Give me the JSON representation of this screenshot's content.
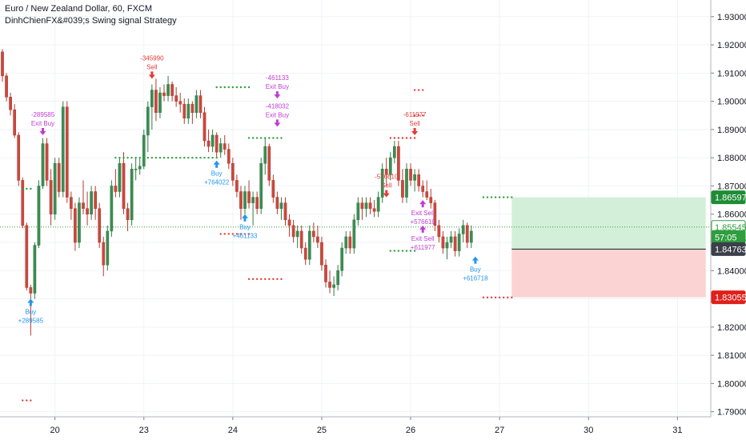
{
  "header": {
    "symbol_title": "Euro / New Zealand Dollar, 60, FXCM",
    "strategy_title": "DinhChienFX&#039;s Swing signal Strategy"
  },
  "colors": {
    "up": "#26a69a",
    "up_body": "#3d7a4a",
    "down": "#c4453b",
    "buy_signal": "#2196f3",
    "sell_signal": "#e53935",
    "exit_signal": "#c23bd4",
    "green_dots": "#2e9e3e",
    "red_dots": "#e53935",
    "tp_zone": "#d4efd9",
    "sl_zone": "#fbd3d3",
    "price_line": "#2e9e3e"
  },
  "chart_data": {
    "type": "candlestick",
    "x_ticks": [
      "20",
      "23",
      "24",
      "25",
      "26",
      "27",
      "30",
      "31"
    ],
    "y_ticks": [
      "1.93000",
      "1.92000",
      "1.91000",
      "1.90000",
      "1.89000",
      "1.88000",
      "1.87000",
      "1.86000",
      "1.85000",
      "1.84000",
      "1.83000",
      "1.82000",
      "1.81000",
      "1.80000",
      "1.79000"
    ],
    "ylim": [
      1.7882,
      1.9359
    ],
    "y_axis_side": "right",
    "candles": [
      [
        1.9175,
        1.9185,
        1.907,
        1.909
      ],
      [
        1.909,
        1.91,
        1.9,
        1.9015
      ],
      [
        1.9015,
        1.903,
        1.895,
        1.897
      ],
      [
        1.897,
        1.899,
        1.887,
        1.888
      ],
      [
        1.888,
        1.889,
        1.87,
        1.872
      ],
      [
        1.872,
        1.873,
        1.855,
        1.856
      ],
      [
        1.856,
        1.857,
        1.833,
        1.834
      ],
      [
        1.834,
        1.835,
        1.817,
        1.832
      ],
      [
        1.832,
        1.85,
        1.83,
        1.849
      ],
      [
        1.849,
        1.872,
        1.848,
        1.87
      ],
      [
        1.87,
        1.887,
        1.869,
        1.885
      ],
      [
        1.885,
        1.887,
        1.87,
        1.872
      ],
      [
        1.872,
        1.876,
        1.856,
        1.86
      ],
      [
        1.86,
        1.88,
        1.858,
        1.878
      ],
      [
        1.878,
        1.88,
        1.866,
        1.868
      ],
      [
        1.868,
        1.9,
        1.866,
        1.898
      ],
      [
        1.898,
        1.9,
        1.864,
        1.866
      ],
      [
        1.866,
        1.868,
        1.858,
        1.862
      ],
      [
        1.862,
        1.864,
        1.847,
        1.85
      ],
      [
        1.85,
        1.866,
        1.848,
        1.864
      ],
      [
        1.864,
        1.872,
        1.86,
        1.862
      ],
      [
        1.862,
        1.868,
        1.856,
        1.86
      ],
      [
        1.86,
        1.87,
        1.858,
        1.868
      ],
      [
        1.868,
        1.87,
        1.858,
        1.862
      ],
      [
        1.862,
        1.864,
        1.848,
        1.85
      ],
      [
        1.85,
        1.852,
        1.838,
        1.842
      ],
      [
        1.842,
        1.856,
        1.84,
        1.854
      ],
      [
        1.854,
        1.872,
        1.852,
        1.87
      ],
      [
        1.87,
        1.876,
        1.866,
        1.868
      ],
      [
        1.868,
        1.88,
        1.866,
        1.878
      ],
      [
        1.878,
        1.882,
        1.86,
        1.862
      ],
      [
        1.862,
        1.864,
        1.854,
        1.858
      ],
      [
        1.858,
        1.878,
        1.856,
        1.876
      ],
      [
        1.876,
        1.88,
        1.872,
        1.876
      ],
      [
        1.876,
        1.88,
        1.874,
        1.877
      ],
      [
        1.877,
        1.89,
        1.876,
        1.888
      ],
      [
        1.888,
        1.9,
        1.882,
        1.898
      ],
      [
        1.898,
        1.906,
        1.89,
        1.904
      ],
      [
        1.904,
        1.908,
        1.893,
        1.896
      ],
      [
        1.896,
        1.905,
        1.894,
        1.903
      ],
      [
        1.903,
        1.906,
        1.9,
        1.902
      ],
      [
        1.902,
        1.909,
        1.9,
        1.906
      ],
      [
        1.906,
        1.907,
        1.9,
        1.902
      ],
      [
        1.902,
        1.905,
        1.898,
        1.9
      ],
      [
        1.9,
        1.903,
        1.896,
        1.899
      ],
      [
        1.899,
        1.901,
        1.892,
        1.894
      ],
      [
        1.894,
        1.901,
        1.892,
        1.899
      ],
      [
        1.899,
        1.9,
        1.892,
        1.896
      ],
      [
        1.896,
        1.904,
        1.894,
        1.902
      ],
      [
        1.902,
        1.904,
        1.894,
        1.896
      ],
      [
        1.896,
        1.898,
        1.884,
        1.886
      ],
      [
        1.886,
        1.89,
        1.882,
        1.884
      ],
      [
        1.884,
        1.89,
        1.882,
        1.888
      ],
      [
        1.888,
        1.889,
        1.88,
        1.882
      ],
      [
        1.882,
        1.887,
        1.88,
        1.885
      ],
      [
        1.885,
        1.888,
        1.881,
        1.883
      ],
      [
        1.883,
        1.885,
        1.876,
        1.878
      ],
      [
        1.878,
        1.88,
        1.87,
        1.872
      ],
      [
        1.872,
        1.874,
        1.866,
        1.868
      ],
      [
        1.868,
        1.87,
        1.858,
        1.862
      ],
      [
        1.862,
        1.87,
        1.86,
        1.868
      ],
      [
        1.868,
        1.872,
        1.862,
        1.864
      ],
      [
        1.864,
        1.868,
        1.856,
        1.866
      ],
      [
        1.866,
        1.868,
        1.86,
        1.862
      ],
      [
        1.862,
        1.88,
        1.86,
        1.878
      ],
      [
        1.878,
        1.887,
        1.874,
        1.884
      ],
      [
        1.884,
        1.885,
        1.87,
        1.872
      ],
      [
        1.872,
        1.874,
        1.864,
        1.866
      ],
      [
        1.866,
        1.868,
        1.86,
        1.862
      ],
      [
        1.862,
        1.866,
        1.858,
        1.864
      ],
      [
        1.864,
        1.866,
        1.856,
        1.858
      ],
      [
        1.858,
        1.86,
        1.852,
        1.856
      ],
      [
        1.856,
        1.858,
        1.85,
        1.852
      ],
      [
        1.852,
        1.856,
        1.848,
        1.854
      ],
      [
        1.854,
        1.856,
        1.846,
        1.848
      ],
      [
        1.848,
        1.85,
        1.842,
        1.844
      ],
      [
        1.844,
        1.856,
        1.842,
        1.854
      ],
      [
        1.854,
        1.857,
        1.85,
        1.852
      ],
      [
        1.852,
        1.856,
        1.848,
        1.85
      ],
      [
        1.85,
        1.852,
        1.84,
        1.842
      ],
      [
        1.842,
        1.844,
        1.834,
        1.836
      ],
      [
        1.836,
        1.84,
        1.832,
        1.834
      ],
      [
        1.834,
        1.838,
        1.831,
        1.835
      ],
      [
        1.835,
        1.842,
        1.833,
        1.84
      ],
      [
        1.84,
        1.85,
        1.838,
        1.848
      ],
      [
        1.848,
        1.854,
        1.846,
        1.852
      ],
      [
        1.852,
        1.854,
        1.846,
        1.848
      ],
      [
        1.848,
        1.86,
        1.846,
        1.858
      ],
      [
        1.858,
        1.866,
        1.856,
        1.864
      ],
      [
        1.864,
        1.866,
        1.858,
        1.862
      ],
      [
        1.862,
        1.866,
        1.859,
        1.864
      ],
      [
        1.864,
        1.866,
        1.86,
        1.862
      ],
      [
        1.862,
        1.865,
        1.859,
        1.861
      ],
      [
        1.861,
        1.868,
        1.859,
        1.866
      ],
      [
        1.866,
        1.878,
        1.864,
        1.876
      ],
      [
        1.876,
        1.88,
        1.87,
        1.874
      ],
      [
        1.874,
        1.882,
        1.872,
        1.88
      ],
      [
        1.88,
        1.886,
        1.878,
        1.884
      ],
      [
        1.884,
        1.886,
        1.87,
        1.872
      ],
      [
        1.872,
        1.876,
        1.864,
        1.866
      ],
      [
        1.866,
        1.878,
        1.864,
        1.876
      ],
      [
        1.876,
        1.878,
        1.87,
        1.872
      ],
      [
        1.872,
        1.876,
        1.868,
        1.874
      ],
      [
        1.874,
        1.876,
        1.868,
        1.87
      ],
      [
        1.87,
        1.872,
        1.866,
        1.868
      ],
      [
        1.868,
        1.872,
        1.865,
        1.866
      ],
      [
        1.866,
        1.869,
        1.862,
        1.864
      ],
      [
        1.864,
        1.865,
        1.854,
        1.856
      ],
      [
        1.856,
        1.858,
        1.85,
        1.852
      ],
      [
        1.852,
        1.854,
        1.846,
        1.848
      ],
      [
        1.848,
        1.852,
        1.844,
        1.85
      ],
      [
        1.85,
        1.854,
        1.848,
        1.852
      ],
      [
        1.852,
        1.854,
        1.845,
        1.847
      ],
      [
        1.847,
        1.855,
        1.845,
        1.853
      ],
      [
        1.853,
        1.858,
        1.85,
        1.856
      ],
      [
        1.856,
        1.857,
        1.848,
        1.85
      ],
      [
        1.85,
        1.856,
        1.848,
        1.854
      ]
    ],
    "signals": [
      {
        "bar": 7,
        "kind": "buy",
        "side": "below",
        "at": 1.83,
        "lines": [
          "Buy",
          "+289585"
        ]
      },
      {
        "bar": 10,
        "kind": "exit",
        "side": "above",
        "at": 1.888,
        "lines": [
          "-289585",
          "Exit Buy"
        ]
      },
      {
        "bar": 37,
        "kind": "sell",
        "side": "above",
        "at": 1.908,
        "lines": [
          "-345990",
          "Sell"
        ]
      },
      {
        "bar": 53,
        "kind": "buy",
        "side": "below",
        "at": 1.879,
        "lines": [
          "Buy",
          "+764022"
        ]
      },
      {
        "bar": 60,
        "kind": "buy",
        "side": "below",
        "at": 1.86,
        "lines": [
          "Buy",
          "+461133"
        ]
      },
      {
        "bar": 68,
        "kind": "exit",
        "side": "above",
        "at": 1.901,
        "lines": [
          "-461133",
          "Exit Buy"
        ]
      },
      {
        "bar": 68,
        "kind": "exit",
        "side": "above",
        "at": 1.891,
        "lines": [
          "-418032",
          "Exit Buy"
        ]
      },
      {
        "bar": 95,
        "kind": "sell",
        "side": "above",
        "at": 1.866,
        "lines": [
          "-576610",
          "Sell"
        ]
      },
      {
        "bar": 102,
        "kind": "sell",
        "side": "above",
        "at": 1.888,
        "lines": [
          "-611977",
          "Sell"
        ]
      },
      {
        "bar": 104,
        "kind": "exit",
        "side": "below",
        "at": 1.865,
        "lines": [
          "Exit Sell",
          "+576610"
        ]
      },
      {
        "bar": 104,
        "kind": "exit",
        "side": "below",
        "at": 1.856,
        "lines": [
          "Exit Sell",
          "+611977"
        ]
      },
      {
        "bar": 117,
        "kind": "buy",
        "side": "below",
        "at": 1.845,
        "lines": [
          "Buy",
          "+616718"
        ]
      }
    ],
    "dot_levels": [
      {
        "color": "green",
        "from": 5,
        "to": 7,
        "y": 1.869
      },
      {
        "color": "green",
        "from": 28,
        "to": 53,
        "y": 1.88
      },
      {
        "color": "green",
        "from": 53,
        "to": 61,
        "y": 1.905
      },
      {
        "color": "green",
        "from": 61,
        "to": 69,
        "y": 1.887
      },
      {
        "color": "green",
        "from": 96,
        "to": 102,
        "y": 1.847
      },
      {
        "color": "green",
        "from": 119,
        "to": 126,
        "y": 1.866
      },
      {
        "color": "red",
        "from": 5,
        "to": 7,
        "y": 1.794
      },
      {
        "color": "red",
        "from": 54,
        "to": 61,
        "y": 1.853
      },
      {
        "color": "red",
        "from": 61,
        "to": 69,
        "y": 1.837
      },
      {
        "color": "red",
        "from": 96,
        "to": 102,
        "y": 1.887
      },
      {
        "color": "red",
        "from": 102,
        "to": 104,
        "y": 1.895
      },
      {
        "color": "red",
        "from": 102,
        "to": 104,
        "y": 1.904
      },
      {
        "color": "red",
        "from": 119,
        "to": 126,
        "y": 1.8305
      }
    ],
    "position": {
      "entry": 1.84763,
      "take_profit": 1.86597,
      "stop_loss": 1.83055,
      "from_bar": 126,
      "to_bar": 174
    },
    "current_price": 1.85545,
    "price_labels": [
      {
        "value": "1.86597",
        "at": 1.86597,
        "bg": "#1e8c34",
        "fg": "#ffffff"
      },
      {
        "value": "1.85545",
        "at": 1.85545,
        "bg": "#ffffff",
        "fg": "#2e9e3e",
        "border": "#2e9e3e"
      },
      {
        "value": "57:05",
        "at": 1.8519,
        "bg": "#2e9e3e",
        "fg": "#ffffff"
      },
      {
        "value": "1.84763",
        "at": 1.84763,
        "bg": "#3b3f4a",
        "fg": "#ffffff"
      },
      {
        "value": "1.83055",
        "at": 1.83055,
        "bg": "#e0201b",
        "fg": "#ffffff"
      }
    ]
  }
}
